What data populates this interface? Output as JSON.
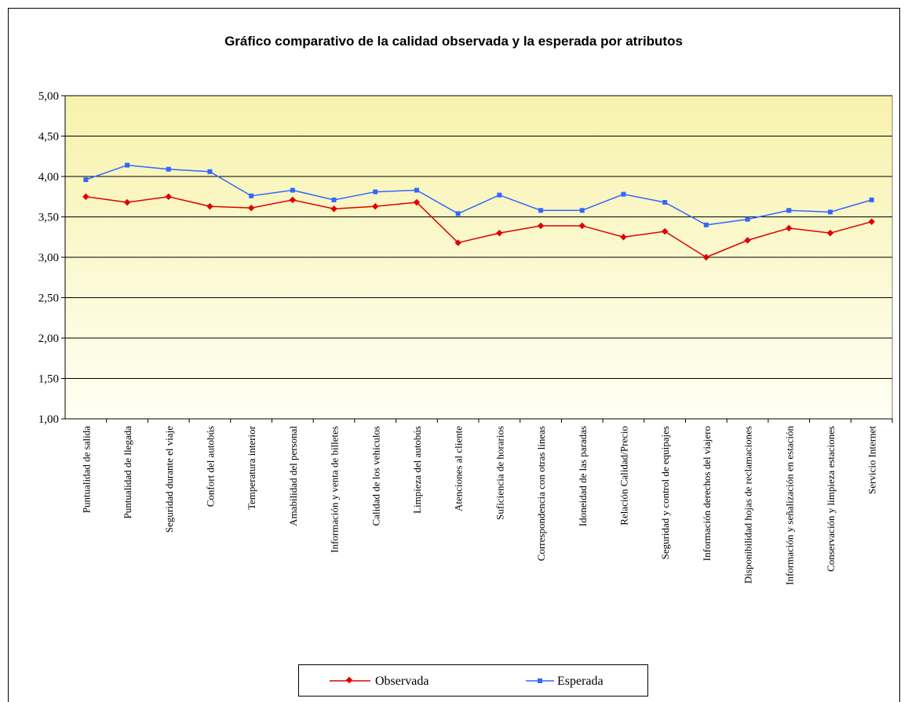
{
  "chart_data": {
    "type": "line",
    "title": "Gráfico comparativo de la calidad observada y la esperada por atributos",
    "categories": [
      "Puntualidad de salida",
      "Puntualidad de llegada",
      "Seguridad durante el viaje",
      "Confort del autobús",
      "Temperatura interior",
      "Amabilidad del personal",
      "Información y venta de billetes",
      "Calidad de los vehículos",
      "Limpieza del autobús",
      "Atenciones al cliente",
      "Suficiencia de horarios",
      "Correspondencia con otras líneas",
      "Idoneidad de las paradas",
      "Relación Calidad/Precio",
      "Seguridad y control de equipajes",
      "Información derechos del viajero",
      "Disponibilidad hojas de reclamaciones",
      "Información y señalización en estación",
      "Conservación y limpieza estaciones",
      "Servicio Internet"
    ],
    "series": [
      {
        "name": "Observada",
        "color": "#e00000",
        "marker": "diamond",
        "values": [
          3.75,
          3.68,
          3.75,
          3.63,
          3.61,
          3.71,
          3.6,
          3.63,
          3.68,
          3.18,
          3.3,
          3.39,
          3.39,
          3.25,
          3.32,
          3.0,
          3.21,
          3.36,
          3.3,
          3.44
        ]
      },
      {
        "name": "Esperada",
        "color": "#3366ff",
        "marker": "square",
        "values": [
          3.96,
          4.14,
          4.09,
          4.06,
          3.76,
          3.83,
          3.71,
          3.81,
          3.83,
          3.54,
          3.77,
          3.58,
          3.58,
          3.78,
          3.68,
          3.4,
          3.47,
          3.58,
          3.56,
          3.71
        ]
      }
    ],
    "ylim": [
      1,
      5
    ],
    "yticks": [
      {
        "value": 1,
        "label": "1,00"
      },
      {
        "value": 1.5,
        "label": "1,50"
      },
      {
        "value": 2,
        "label": "2,00"
      },
      {
        "value": 2.5,
        "label": "2,50"
      },
      {
        "value": 3,
        "label": "3,00"
      },
      {
        "value": 3.5,
        "label": "3,50"
      },
      {
        "value": 4,
        "label": "4,00"
      },
      {
        "value": 4.5,
        "label": "4,50"
      },
      {
        "value": 5,
        "label": "5,00"
      }
    ],
    "grid": true,
    "legend": "bottom"
  }
}
